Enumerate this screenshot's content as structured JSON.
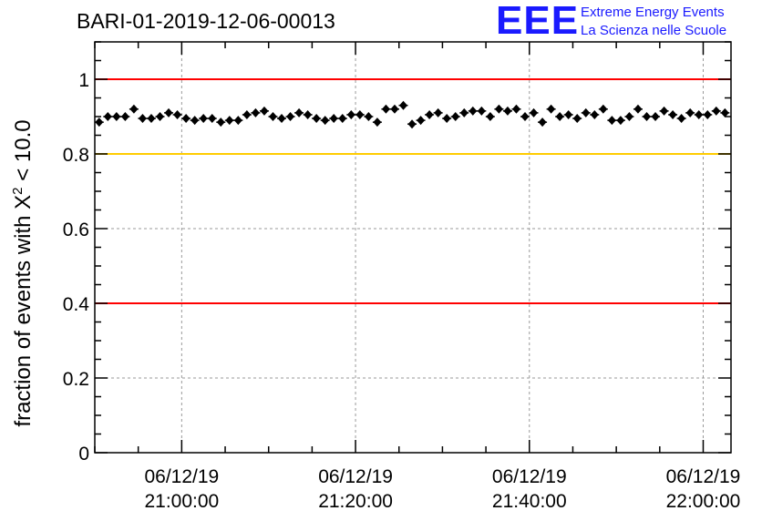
{
  "chart_data": {
    "type": "scatter",
    "title": "BARI-01-2019-12-06-00013",
    "ylabel_prefix": "fraction of events with ",
    "ylabel_symbol": "X",
    "ylabel_sup": "2",
    "ylabel_suffix": " < 10.0",
    "xlabel": "",
    "x_units": "minutes after 2019-12-06 20:00",
    "xlim": [
      50,
      123.2
    ],
    "ylim": [
      0,
      1.1
    ],
    "yticks": [
      {
        "v": 0,
        "label": "0"
      },
      {
        "v": 0.2,
        "label": "0.2"
      },
      {
        "v": 0.4,
        "label": "0.4"
      },
      {
        "v": 0.6,
        "label": "0.6"
      },
      {
        "v": 0.8,
        "label": "0.8"
      },
      {
        "v": 1,
        "label": "1"
      }
    ],
    "xticks": [
      {
        "v": 60,
        "date": "06/12/19",
        "time": "21:00:00"
      },
      {
        "v": 80,
        "date": "06/12/19",
        "time": "21:20:00"
      },
      {
        "v": 100,
        "date": "06/12/19",
        "time": "21:40:00"
      },
      {
        "v": 120,
        "date": "06/12/19",
        "time": "22:00:00"
      }
    ],
    "reference_lines": [
      {
        "y": 1.0,
        "color": "#ff0000"
      },
      {
        "y": 0.8,
        "color": "#ffcc00"
      },
      {
        "y": 0.4,
        "color": "#ff0000"
      }
    ],
    "grid": "dashed at 0.2 / 0.6 and major time ticks",
    "x_start": 50.5,
    "x_step": 1,
    "values": [
      0.885,
      0.9,
      0.9,
      0.9,
      0.92,
      0.895,
      0.895,
      0.9,
      0.91,
      0.905,
      0.895,
      0.89,
      0.895,
      0.895,
      0.885,
      0.89,
      0.89,
      0.905,
      0.91,
      0.915,
      0.9,
      0.895,
      0.9,
      0.91,
      0.905,
      0.895,
      0.89,
      0.895,
      0.895,
      0.905,
      0.905,
      0.9,
      0.885,
      0.92,
      0.92,
      0.93,
      0.88,
      0.89,
      0.905,
      0.91,
      0.895,
      0.9,
      0.91,
      0.915,
      0.915,
      0.9,
      0.92,
      0.915,
      0.92,
      0.9,
      0.91,
      0.885,
      0.92,
      0.9,
      0.905,
      0.895,
      0.91,
      0.905,
      0.92,
      0.89,
      0.89,
      0.9,
      0.92,
      0.9,
      0.9,
      0.915,
      0.905,
      0.895,
      0.91,
      0.905,
      0.905,
      0.915,
      0.91
    ],
    "marker_color": "#000000"
  },
  "logo": {
    "big": "EEE",
    "line1": "Extreme Energy Events",
    "line2": "La Scienza nelle Scuole",
    "color": "#1a1aff"
  }
}
